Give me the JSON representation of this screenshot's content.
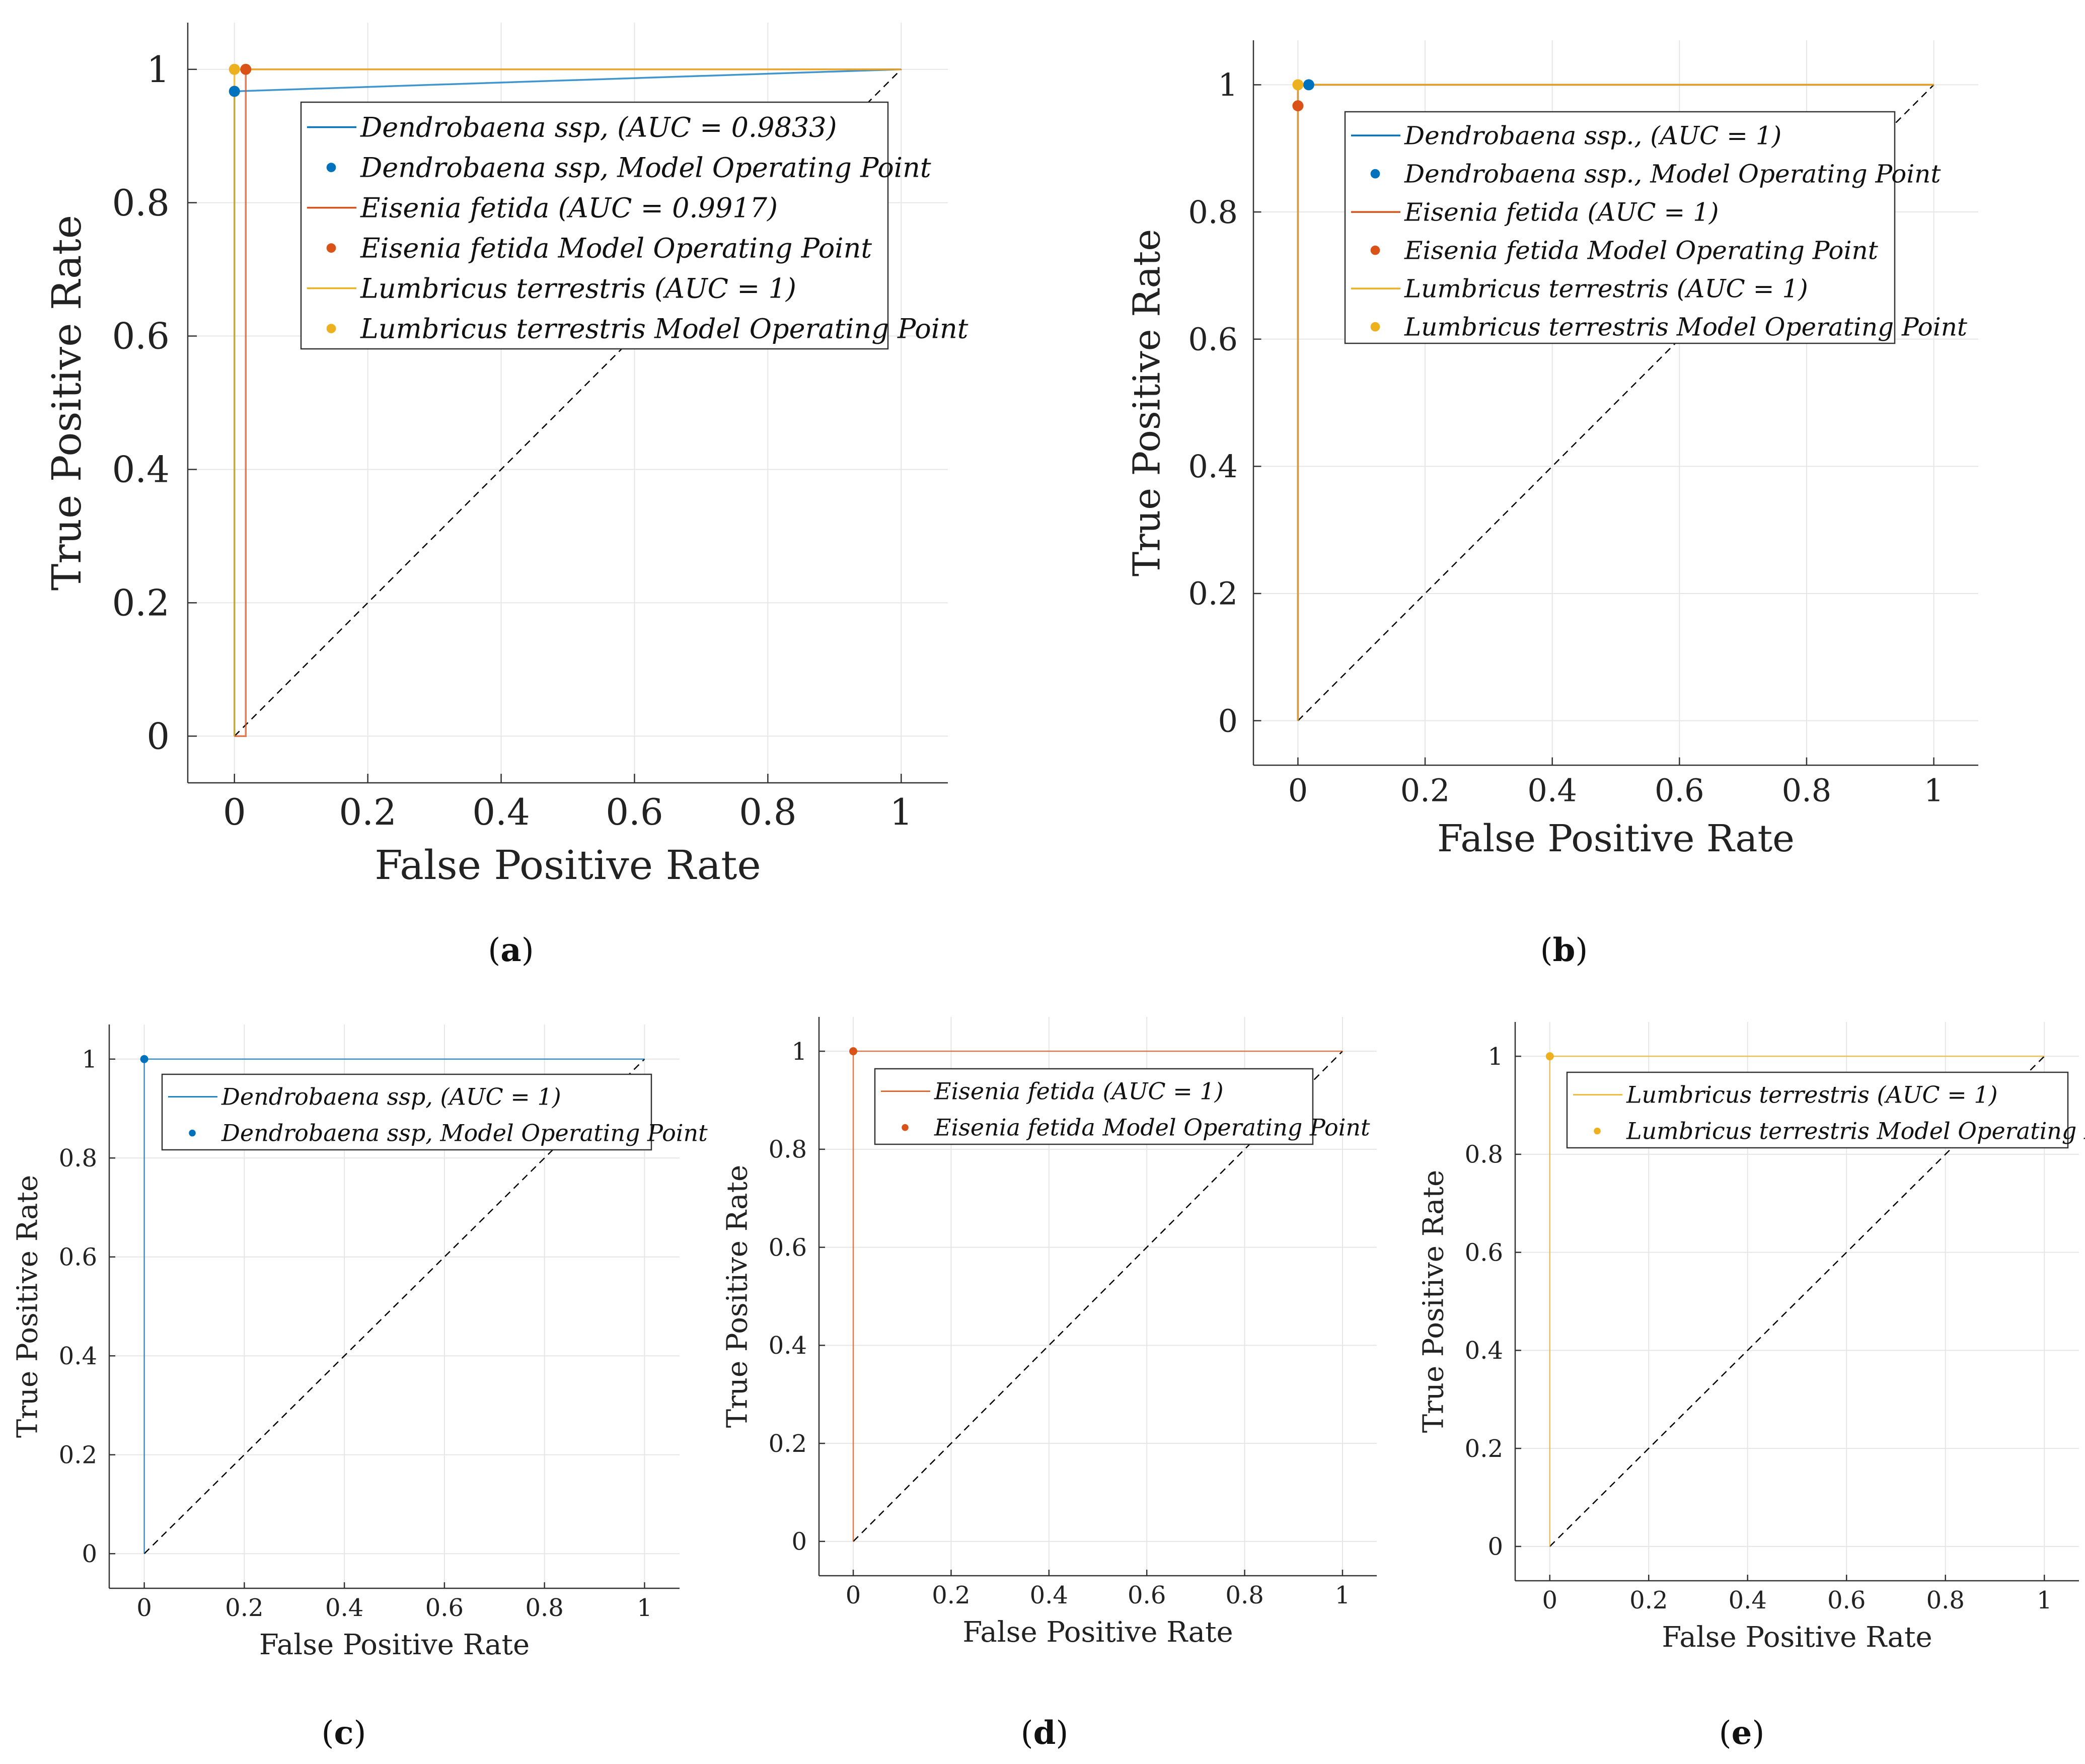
{
  "figure_labels": [
    "a",
    "b",
    "c",
    "d",
    "e"
  ],
  "colors": {
    "dendrobaena": "#0072BD",
    "eisenia": "#D95319",
    "lumbricus": "#EDB120",
    "grid": "#e6e6e6",
    "axis": "#333333",
    "diagonal": "#000000"
  },
  "chart_data": [
    {
      "type": "line",
      "panel": "a",
      "xlabel": "False Positive Rate",
      "ylabel": "True Positive Rate",
      "xlim": [
        -0.07,
        1.07
      ],
      "ylim": [
        -0.07,
        1.07
      ],
      "ticks": [
        0,
        0.2,
        0.4,
        0.6,
        0.8,
        1
      ],
      "tick_labels": [
        "0",
        "0.2",
        "0.4",
        "0.6",
        "0.8",
        "1"
      ],
      "grid": true,
      "legend_position": "upper-center",
      "diagonal": true,
      "series": [
        {
          "name": "Dendrobaena ssp, (AUC = 0.9833)",
          "point_name": "Dendrobaena ssp, Model Operating Point",
          "color": "dendrobaena",
          "x": [
            0,
            0,
            1
          ],
          "y": [
            0,
            0.967,
            1
          ],
          "point": [
            0,
            0.967
          ]
        },
        {
          "name": "Eisenia fetida (AUC = 0.9917)",
          "point_name": "Eisenia fetida Model Operating Point",
          "color": "eisenia",
          "x": [
            0,
            0.017,
            0.017,
            1
          ],
          "y": [
            0,
            0,
            1,
            1
          ],
          "point": [
            0.017,
            1
          ]
        },
        {
          "name": "Lumbricus terrestris (AUC = 1)",
          "point_name": "Lumbricus terrestris Model Operating Point",
          "color": "lumbricus",
          "x": [
            0,
            0,
            1
          ],
          "y": [
            0,
            1,
            1
          ],
          "point": [
            0,
            1
          ]
        }
      ]
    },
    {
      "type": "line",
      "panel": "b",
      "xlabel": "False Positive Rate",
      "ylabel": "True Positive Rate",
      "xlim": [
        -0.07,
        1.07
      ],
      "ylim": [
        -0.07,
        1.07
      ],
      "ticks": [
        0,
        0.2,
        0.4,
        0.6,
        0.8,
        1
      ],
      "tick_labels": [
        "0",
        "0.2",
        "0.4",
        "0.6",
        "0.8",
        "1"
      ],
      "grid": true,
      "legend_position": "upper-center",
      "diagonal": true,
      "series": [
        {
          "name": "Dendrobaena ssp., (AUC = 1)",
          "point_name": "Dendrobaena ssp., Model Operating Point",
          "color": "dendrobaena",
          "x": [
            0,
            0,
            1
          ],
          "y": [
            0,
            1,
            1
          ],
          "point": [
            0.017,
            1
          ]
        },
        {
          "name": "Eisenia fetida (AUC = 1)",
          "point_name": "Eisenia fetida Model Operating Point",
          "color": "eisenia",
          "x": [
            0,
            0,
            1
          ],
          "y": [
            0,
            1,
            1
          ],
          "point": [
            0,
            0.967
          ]
        },
        {
          "name": "Lumbricus terrestris (AUC = 1)",
          "point_name": "Lumbricus terrestris Model Operating Point",
          "color": "lumbricus",
          "x": [
            0,
            0,
            1
          ],
          "y": [
            0,
            1,
            1
          ],
          "point": [
            0,
            1
          ]
        }
      ]
    },
    {
      "type": "line",
      "panel": "c",
      "xlabel": "False Positive Rate",
      "ylabel": "True Positive Rate",
      "xlim": [
        -0.07,
        1.07
      ],
      "ylim": [
        -0.07,
        1.07
      ],
      "ticks": [
        0,
        0.2,
        0.4,
        0.6,
        0.8,
        1
      ],
      "tick_labels": [
        "0",
        "0.2",
        "0.4",
        "0.6",
        "0.8",
        "1"
      ],
      "grid": true,
      "legend_position": "upper-right",
      "diagonal": true,
      "series": [
        {
          "name": "Dendrobaena ssp, (AUC = 1)",
          "point_name": "Dendrobaena ssp, Model Operating Point",
          "color": "dendrobaena",
          "x": [
            0,
            0,
            1
          ],
          "y": [
            0,
            1,
            1
          ],
          "point": [
            0,
            1
          ]
        }
      ]
    },
    {
      "type": "line",
      "panel": "d",
      "xlabel": "False Positive Rate",
      "ylabel": "True Positive Rate",
      "xlim": [
        -0.07,
        1.07
      ],
      "ylim": [
        -0.07,
        1.07
      ],
      "ticks": [
        0,
        0.2,
        0.4,
        0.6,
        0.8,
        1
      ],
      "tick_labels": [
        "0",
        "0.2",
        "0.4",
        "0.6",
        "0.8",
        "1"
      ],
      "grid": true,
      "legend_position": "upper-right",
      "diagonal": true,
      "series": [
        {
          "name": "Eisenia fetida (AUC = 1)",
          "point_name": "Eisenia fetida Model Operating Point",
          "color": "eisenia",
          "x": [
            0,
            0,
            1
          ],
          "y": [
            0,
            1,
            1
          ],
          "point": [
            0,
            1
          ]
        }
      ]
    },
    {
      "type": "line",
      "panel": "e",
      "xlabel": "False Positive Rate",
      "ylabel": "True Positive Rate",
      "xlim": [
        -0.07,
        1.07
      ],
      "ylim": [
        -0.07,
        1.07
      ],
      "ticks": [
        0,
        0.2,
        0.4,
        0.6,
        0.8,
        1
      ],
      "tick_labels": [
        "0",
        "0.2",
        "0.4",
        "0.6",
        "0.8",
        "1"
      ],
      "grid": true,
      "legend_position": "upper-right",
      "diagonal": true,
      "series": [
        {
          "name": "Lumbricus terrestris (AUC = 1)",
          "point_name": "Lumbricus terrestris Model Operating Point",
          "color": "lumbricus",
          "x": [
            0,
            0,
            1
          ],
          "y": [
            0,
            1,
            1
          ],
          "point": [
            0,
            1
          ]
        }
      ]
    }
  ]
}
